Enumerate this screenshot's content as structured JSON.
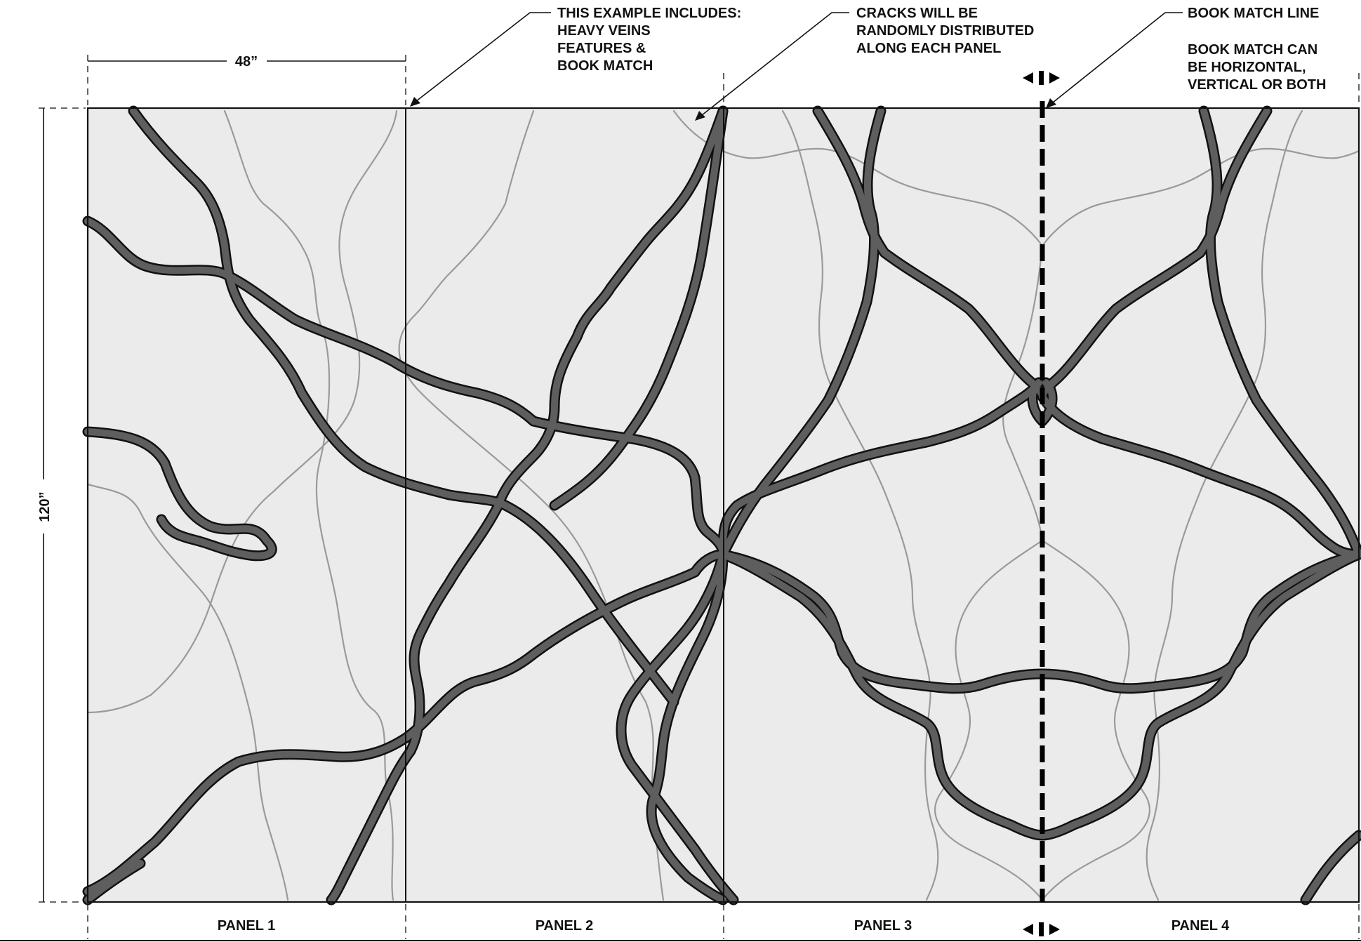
{
  "dimensions": {
    "width_label": "48”",
    "height_label": "120”"
  },
  "annotations": {
    "features": [
      "THIS EXAMPLE INCLUDES:",
      "HEAVY VEINS",
      "FEATURES &",
      "BOOK MATCH"
    ],
    "cracks": [
      "CRACKS WILL BE",
      "RANDOMLY DISTRIBUTED",
      "ALONG EACH PANEL"
    ],
    "book_match_line": "BOOK MATCH LINE",
    "book_match_note": [
      "BOOK MATCH CAN",
      "BE HORIZONTAL,",
      "VERTICAL OR BOTH"
    ]
  },
  "panels": [
    {
      "label": "PANEL 1"
    },
    {
      "label": "PANEL 2"
    },
    {
      "label": "PANEL 3"
    },
    {
      "label": "PANEL 4"
    }
  ],
  "colors": {
    "panel_fill": "#ebebeb",
    "vein_outline": "#111111",
    "vein_fill": "#5e5e5e",
    "crack": "#9a9a9a",
    "book_match_line": "#000000"
  }
}
